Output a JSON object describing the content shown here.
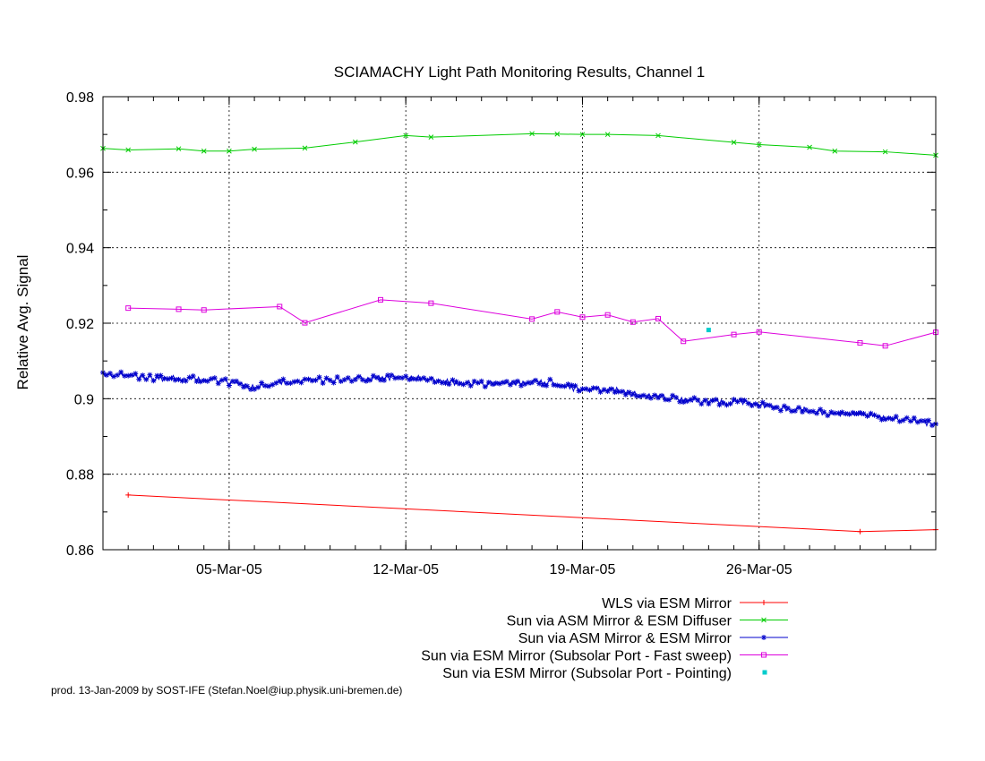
{
  "chart_data": {
    "type": "line",
    "title": "SCIAMACHY Light Path Monitoring Results, Channel 1",
    "xlabel": "",
    "ylabel": "Relative Avg. Signal",
    "xlim": [
      "2005-02-28",
      "2005-04-02"
    ],
    "ylim": [
      0.86,
      0.98
    ],
    "x_ticks": [
      "05-Mar-05",
      "12-Mar-05",
      "19-Mar-05",
      "26-Mar-05"
    ],
    "y_ticks": [
      "0.86",
      "0.88",
      "0.9",
      "0.92",
      "0.94",
      "0.96",
      "0.98"
    ],
    "grid": true,
    "legend_position": "bottom-right",
    "series": [
      {
        "name": "WLS via ESM Mirror",
        "color": "#ff0000",
        "marker": "plus",
        "points": [
          [
            "2005-03-01",
            0.8745
          ],
          [
            "2005-03-30",
            0.8648
          ],
          [
            "2005-04-02",
            0.8653
          ]
        ]
      },
      {
        "name": "Sun via ASM Mirror & ESM Diffuser",
        "color": "#00cc00",
        "marker": "cross",
        "points": [
          [
            "2005-02-28",
            0.9663
          ],
          [
            "2005-03-01",
            0.9659
          ],
          [
            "2005-03-03",
            0.9662
          ],
          [
            "2005-03-04",
            0.9656
          ],
          [
            "2005-03-05",
            0.9656
          ],
          [
            "2005-03-06",
            0.9661
          ],
          [
            "2005-03-08",
            0.9664
          ],
          [
            "2005-03-10",
            0.968
          ],
          [
            "2005-03-12",
            0.9697
          ],
          [
            "2005-03-13",
            0.9693
          ],
          [
            "2005-03-17",
            0.9702
          ],
          [
            "2005-03-18",
            0.9701
          ],
          [
            "2005-03-19",
            0.97
          ],
          [
            "2005-03-20",
            0.97
          ],
          [
            "2005-03-22",
            0.9697
          ],
          [
            "2005-03-25",
            0.9679
          ],
          [
            "2005-03-26",
            0.9673
          ],
          [
            "2005-03-28",
            0.9666
          ],
          [
            "2005-03-29",
            0.9656
          ],
          [
            "2005-03-31",
            0.9654
          ],
          [
            "2005-04-02",
            0.9645
          ]
        ]
      },
      {
        "name": "Sun via ASM Mirror & ESM Mirror",
        "color": "#0000cc",
        "marker": "star",
        "points": [
          [
            "2005-02-28",
            0.9064
          ],
          [
            "2005-03-01",
            0.9062
          ],
          [
            "2005-03-02",
            0.9055
          ],
          [
            "2005-03-03",
            0.9053
          ],
          [
            "2005-03-04",
            0.9052
          ],
          [
            "2005-03-05",
            0.9043
          ],
          [
            "2005-03-06",
            0.903
          ],
          [
            "2005-03-07",
            0.9045
          ],
          [
            "2005-03-08",
            0.9047
          ],
          [
            "2005-03-09",
            0.905
          ],
          [
            "2005-03-10",
            0.9053
          ],
          [
            "2005-03-11",
            0.9055
          ],
          [
            "2005-03-12",
            0.906
          ],
          [
            "2005-03-13",
            0.905
          ],
          [
            "2005-03-14",
            0.9043
          ],
          [
            "2005-03-15",
            0.904
          ],
          [
            "2005-03-16",
            0.904
          ],
          [
            "2005-03-17",
            0.9043
          ],
          [
            "2005-03-18",
            0.9043
          ],
          [
            "2005-03-19",
            0.902
          ],
          [
            "2005-03-20",
            0.9028
          ],
          [
            "2005-03-21",
            0.9012
          ],
          [
            "2005-03-22",
            0.9005
          ],
          [
            "2005-03-23",
            0.8998
          ],
          [
            "2005-03-24",
            0.8993
          ],
          [
            "2005-03-25",
            0.899
          ],
          [
            "2005-03-26",
            0.8985
          ],
          [
            "2005-03-27",
            0.8975
          ],
          [
            "2005-03-28",
            0.8968
          ],
          [
            "2005-03-29",
            0.896
          ],
          [
            "2005-03-30",
            0.8955
          ],
          [
            "2005-03-31",
            0.895
          ],
          [
            "2005-04-01",
            0.8943
          ],
          [
            "2005-04-02",
            0.8933
          ]
        ]
      },
      {
        "name": "Sun via ESM Mirror (Subsolar Port - Fast sweep)",
        "color": "#dd00dd",
        "marker": "square",
        "points": [
          [
            "2005-03-01",
            0.924
          ],
          [
            "2005-03-03",
            0.9237
          ],
          [
            "2005-03-04",
            0.9235
          ],
          [
            "2005-03-07",
            0.9244
          ],
          [
            "2005-03-08",
            0.9201
          ],
          [
            "2005-03-11",
            0.9262
          ],
          [
            "2005-03-13",
            0.9253
          ],
          [
            "2005-03-17",
            0.9211
          ],
          [
            "2005-03-18",
            0.923
          ],
          [
            "2005-03-19",
            0.9216
          ],
          [
            "2005-03-20",
            0.9222
          ],
          [
            "2005-03-21",
            0.9203
          ],
          [
            "2005-03-22",
            0.9212
          ],
          [
            "2005-03-23",
            0.9152
          ],
          [
            "2005-03-25",
            0.917
          ],
          [
            "2005-03-26",
            0.9177
          ],
          [
            "2005-03-30",
            0.9148
          ],
          [
            "2005-03-31",
            0.914
          ],
          [
            "2005-04-02",
            0.9176
          ]
        ]
      },
      {
        "name": "Sun via ESM Mirror (Subsolar Port - Pointing)",
        "color": "#00cccc",
        "marker": "dot",
        "points": [
          [
            "2005-03-24",
            0.9182
          ]
        ]
      }
    ]
  },
  "footer": "prod. 13-Jan-2009 by SOST-IFE (Stefan.Noel@iup.physik.uni-bremen.de)"
}
